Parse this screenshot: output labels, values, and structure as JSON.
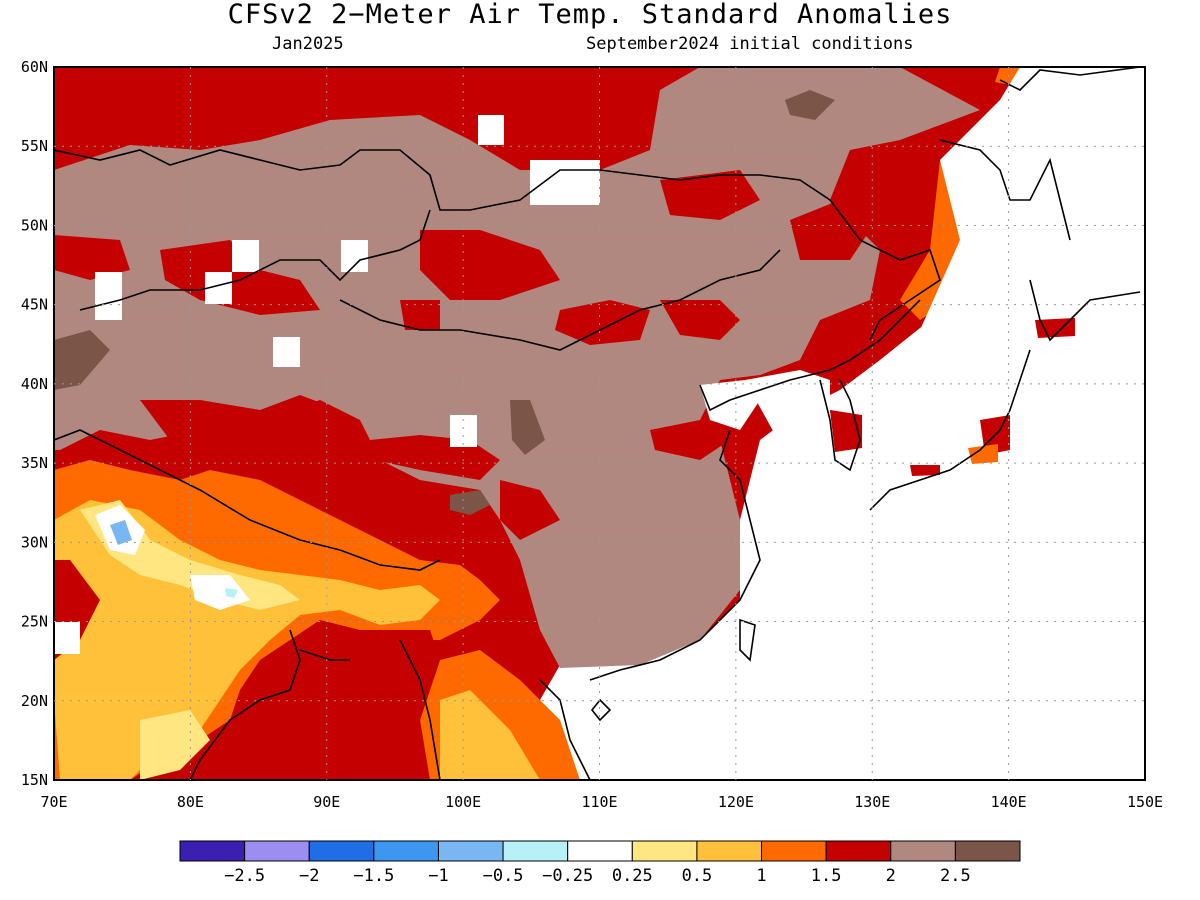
{
  "header": {
    "title": "CFSv2 2−Meter Air Temp. Standard Anomalies",
    "valid_month": "Jan2025",
    "init_conditions": "September2024 initial conditions"
  },
  "map": {
    "lon_ticks": [
      "70E",
      "80E",
      "90E",
      "100E",
      "110E",
      "120E",
      "130E",
      "140E",
      "150E"
    ],
    "lat_ticks": [
      "60N",
      "55N",
      "50N",
      "45N",
      "40N",
      "35N",
      "30N",
      "25N",
      "20N",
      "15N"
    ],
    "lon_range": [
      70,
      150
    ],
    "lat_range": [
      15,
      60
    ]
  },
  "colorbar": {
    "colors": [
      "#3a1fb0",
      "#9b8ef0",
      "#1f6ee6",
      "#3d96f0",
      "#78b7f2",
      "#b8f0f8",
      "#ffffff",
      "#ffe680",
      "#ffc03a",
      "#ff6a00",
      "#c40000",
      "#b08880",
      "#7a5548"
    ],
    "labels": [
      "−2.5",
      "−2",
      "−1.5",
      "−1",
      "−0.5",
      "−0.25",
      "0.25",
      "0.5",
      "1",
      "1.5",
      "2",
      "2.5"
    ]
  }
}
